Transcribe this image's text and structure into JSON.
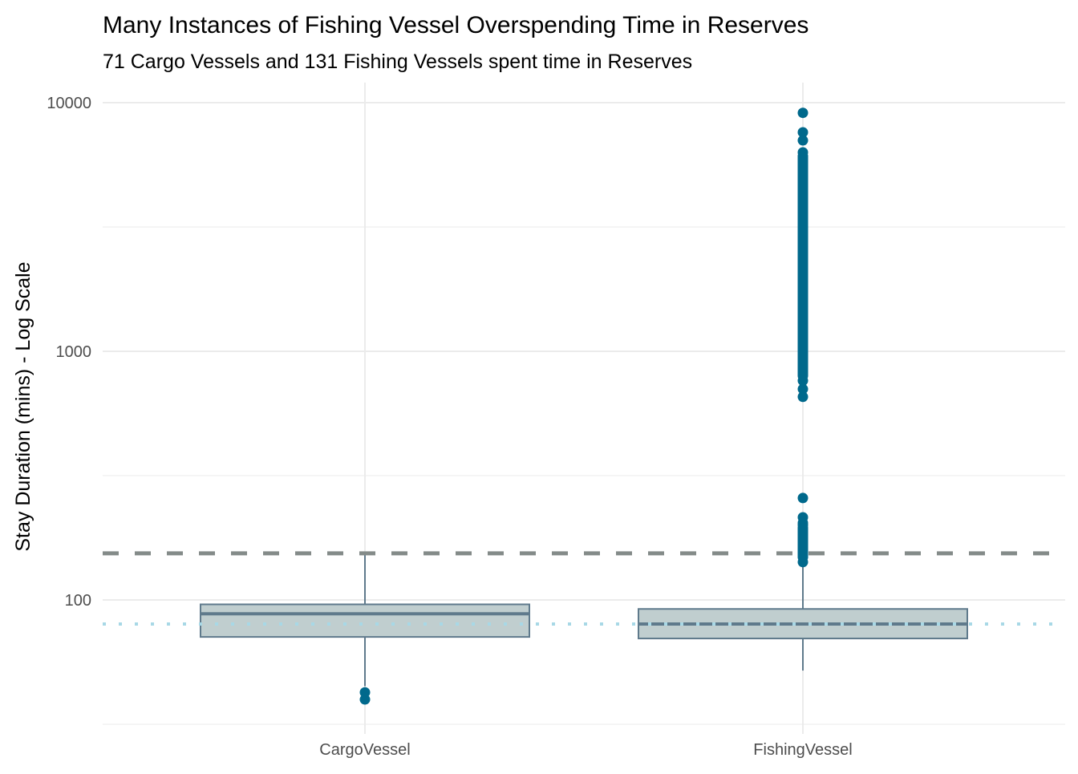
{
  "chart_data": {
    "type": "boxplot",
    "title": "Many Instances of Fishing Vessel Overspending Time in Reserves",
    "subtitle": "71 Cargo Vessels and 131 Fishing Vessels spent time in Reserves",
    "xlabel": "",
    "ylabel": "Stay Duration (mins) - Log Scale",
    "y_scale": "log10",
    "ylim": [
      28,
      12000
    ],
    "y_ticks": [
      100,
      1000,
      10000
    ],
    "y_tick_labels": [
      "100",
      "1000",
      "10000"
    ],
    "grid": true,
    "categories": [
      "CargoVessel",
      "FishingVessel"
    ],
    "boxes": [
      {
        "category": "CargoVessel",
        "lower_whisker": 45,
        "q1": 71,
        "median": 88,
        "q3": 96,
        "upper_whisker": 154,
        "outliers": [
          42.5,
          39.8
        ]
      },
      {
        "category": "FishingVessel",
        "lower_whisker": 52,
        "q1": 70,
        "median": 80,
        "q3": 92,
        "upper_whisker": 140,
        "outliers": [
          142,
          150,
          160,
          170,
          180,
          190,
          200,
          204,
          215,
          257,
          656,
          705,
          762,
          820,
          900,
          1000,
          1200,
          1500,
          1800,
          2200,
          2700,
          3300,
          4000,
          4800,
          5500,
          6100,
          6310,
          7050,
          7600,
          9100
        ]
      }
    ],
    "reference_lines": [
      {
        "value": 154,
        "style": "dashed",
        "color": "#848b89"
      },
      {
        "value": 80,
        "style": "dotted",
        "color": "#a8d8e6"
      }
    ],
    "colors": {
      "box_fill": "#c0cecf",
      "box_line": "#5f7a8c",
      "outlier": "#00698c",
      "grid": "#ebebeb"
    }
  }
}
